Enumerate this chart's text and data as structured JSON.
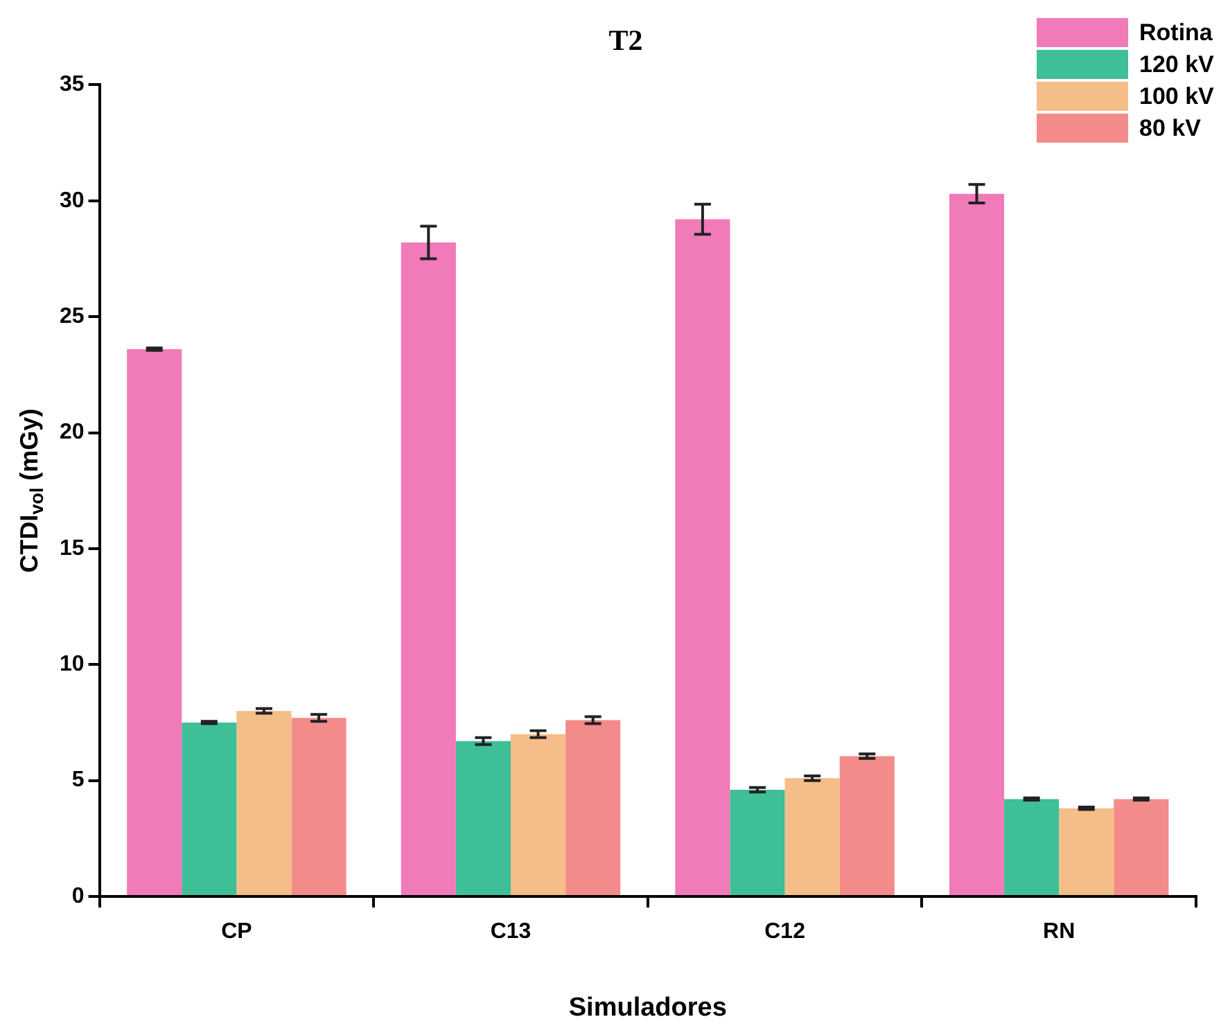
{
  "chart_data": {
    "type": "bar",
    "title": "T2",
    "xlabel": "Simuladores",
    "ylabel": "CTDI$_{vol}$ (mGy)",
    "categories": [
      "CP",
      "C13",
      "C12",
      "RN"
    ],
    "series": [
      {
        "name": "Rotina",
        "color": "#f17ab8",
        "values": [
          23.6,
          28.2,
          29.2,
          30.3
        ],
        "errors": [
          0.05,
          0.7,
          0.65,
          0.4
        ]
      },
      {
        "name": "120 kV",
        "color": "#3fbf98",
        "values": [
          7.5,
          6.7,
          4.6,
          4.2
        ],
        "errors": [
          0.05,
          0.15,
          0.1,
          0.05
        ]
      },
      {
        "name": "100 kV",
        "color": "#f5bd88",
        "values": [
          8.0,
          7.0,
          5.1,
          3.8
        ],
        "errors": [
          0.1,
          0.15,
          0.1,
          0.05
        ]
      },
      {
        "name": "80 kV",
        "color": "#f48b8b",
        "values": [
          7.7,
          7.6,
          6.05,
          4.2
        ],
        "errors": [
          0.15,
          0.15,
          0.1,
          0.05
        ]
      }
    ],
    "ylim": [
      0,
      35
    ],
    "yticks": [
      0,
      5,
      10,
      15,
      20,
      25,
      30,
      35
    ],
    "grid": false,
    "legend": "top right"
  }
}
